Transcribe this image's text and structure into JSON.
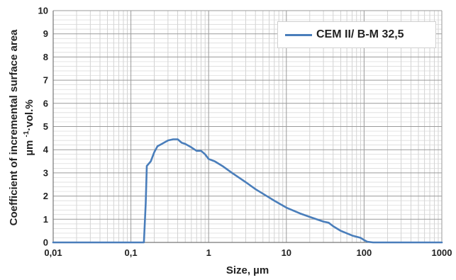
{
  "chart_data": {
    "type": "line",
    "title": "",
    "xlabel": "Size, µm",
    "ylabel_line1": "Coefficient of incremental surface area",
    "ylabel_line2_prefix": "µm ",
    "ylabel_line2_sup": "-1",
    "ylabel_line2_suffix": "·vol.%",
    "x_scale": "log",
    "xlim": [
      0.01,
      1000
    ],
    "ylim": [
      0,
      10
    ],
    "x_ticks": [
      0.01,
      0.1,
      1,
      10,
      100,
      1000
    ],
    "x_tick_labels": [
      "0,01",
      "0,1",
      "1",
      "10",
      "100",
      "1000"
    ],
    "y_ticks": [
      0,
      1,
      2,
      3,
      4,
      5,
      6,
      7,
      8,
      9,
      10
    ],
    "y_tick_labels": [
      "0",
      "1",
      "2",
      "3",
      "4",
      "5",
      "6",
      "7",
      "8",
      "9",
      "10"
    ],
    "grid": true,
    "legend_position": "top-right",
    "series": [
      {
        "name": "CEM II/ B-M 32,5",
        "color": "#4a7ebb",
        "x": [
          0.01,
          0.147,
          0.155,
          0.16,
          0.18,
          0.2,
          0.22,
          0.25,
          0.3,
          0.35,
          0.4,
          0.45,
          0.5,
          0.6,
          0.7,
          0.8,
          0.9,
          1.0,
          1.2,
          1.5,
          2.0,
          3.0,
          4.0,
          5.0,
          7.0,
          10,
          15,
          20,
          30,
          35,
          40,
          50,
          70,
          90,
          100,
          110,
          130,
          1000
        ],
        "y": [
          0,
          0,
          1.7,
          3.3,
          3.5,
          3.9,
          4.15,
          4.25,
          4.4,
          4.45,
          4.45,
          4.3,
          4.25,
          4.1,
          3.95,
          3.95,
          3.8,
          3.6,
          3.5,
          3.3,
          3.0,
          2.6,
          2.3,
          2.1,
          1.8,
          1.5,
          1.25,
          1.1,
          0.9,
          0.85,
          0.7,
          0.5,
          0.3,
          0.2,
          0.1,
          0.03,
          0,
          0
        ]
      }
    ]
  }
}
